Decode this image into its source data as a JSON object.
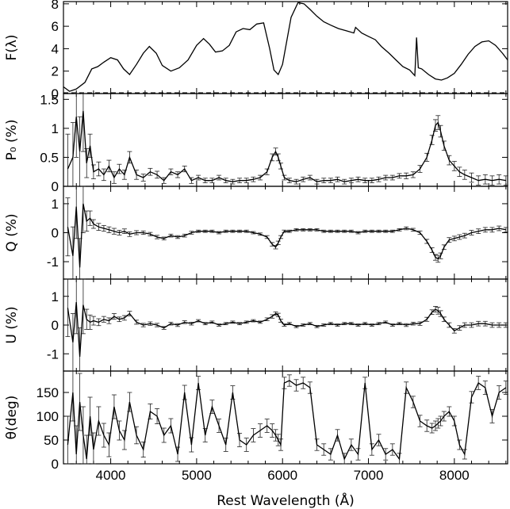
{
  "chart_data": [
    {
      "type": "line",
      "panel": "flux",
      "ylabel": "F(λ)",
      "ylim": [
        0,
        8.2
      ],
      "yticks": [
        0,
        2,
        4,
        6,
        8
      ],
      "xlim": [
        3450,
        8620
      ],
      "x": [
        3450,
        3520,
        3600,
        3700,
        3780,
        3850,
        3920,
        4000,
        4080,
        4150,
        4220,
        4300,
        4380,
        4450,
        4530,
        4600,
        4700,
        4800,
        4900,
        5000,
        5080,
        5150,
        5220,
        5300,
        5380,
        5460,
        5540,
        5620,
        5700,
        5780,
        5850,
        5900,
        5950,
        6000,
        6050,
        6100,
        6180,
        6250,
        6320,
        6400,
        6480,
        6560,
        6650,
        6740,
        6830,
        6850,
        6920,
        7000,
        7080,
        7150,
        7240,
        7320,
        7400,
        7480,
        7540,
        7560,
        7580,
        7620,
        7700,
        7780,
        7850,
        7920,
        8000,
        8080,
        8160,
        8240,
        8320,
        8400,
        8480,
        8560,
        8620
      ],
      "y": [
        0.6,
        0.2,
        0.4,
        1.0,
        2.2,
        2.4,
        2.8,
        3.2,
        3.0,
        2.2,
        1.7,
        2.6,
        3.6,
        4.2,
        3.6,
        2.5,
        2.0,
        2.3,
        3.0,
        4.3,
        4.9,
        4.4,
        3.7,
        3.8,
        4.3,
        5.5,
        5.8,
        5.7,
        6.2,
        6.3,
        4.0,
        2.1,
        1.7,
        2.6,
        4.7,
        6.8,
        8.1,
        8.0,
        7.5,
        6.9,
        6.4,
        6.1,
        5.8,
        5.6,
        5.4,
        5.9,
        5.4,
        5.1,
        4.8,
        4.2,
        3.6,
        3.0,
        2.4,
        2.1,
        1.6,
        5.0,
        2.3,
        2.2,
        1.7,
        1.3,
        1.2,
        1.4,
        1.8,
        2.6,
        3.5,
        4.2,
        4.6,
        4.7,
        4.3,
        3.6,
        3.0
      ]
    },
    {
      "type": "line",
      "panel": "p0",
      "ylabel": "P₀ (%)",
      "ylim": [
        0,
        1.6
      ],
      "yticks": [
        0,
        0.5,
        1,
        1.5
      ],
      "x": [
        3500,
        3560,
        3600,
        3640,
        3680,
        3720,
        3760,
        3800,
        3860,
        3920,
        3980,
        4040,
        4100,
        4160,
        4220,
        4300,
        4380,
        4460,
        4540,
        4620,
        4700,
        4780,
        4860,
        4940,
        5020,
        5100,
        5180,
        5260,
        5340,
        5420,
        5500,
        5580,
        5660,
        5740,
        5820,
        5880,
        5920,
        5950,
        5980,
        6020,
        6080,
        6160,
        6240,
        6320,
        6400,
        6480,
        6560,
        6640,
        6720,
        6800,
        6880,
        6960,
        7040,
        7120,
        7200,
        7280,
        7360,
        7440,
        7520,
        7600,
        7680,
        7740,
        7780,
        7810,
        7840,
        7880,
        7940,
        8000,
        8060,
        8120,
        8200,
        8280,
        8360,
        8440,
        8520,
        8600
      ],
      "y": [
        0.3,
        0.5,
        1.2,
        0.6,
        1.3,
        0.4,
        0.7,
        0.25,
        0.3,
        0.2,
        0.35,
        0.15,
        0.3,
        0.2,
        0.5,
        0.2,
        0.15,
        0.25,
        0.2,
        0.1,
        0.25,
        0.2,
        0.3,
        0.1,
        0.15,
        0.1,
        0.1,
        0.15,
        0.1,
        0.08,
        0.1,
        0.1,
        0.12,
        0.15,
        0.25,
        0.5,
        0.6,
        0.5,
        0.35,
        0.15,
        0.1,
        0.08,
        0.12,
        0.15,
        0.08,
        0.1,
        0.1,
        0.12,
        0.08,
        0.1,
        0.12,
        0.1,
        0.1,
        0.12,
        0.15,
        0.15,
        0.18,
        0.18,
        0.2,
        0.3,
        0.5,
        0.8,
        1.05,
        1.1,
        0.95,
        0.7,
        0.45,
        0.35,
        0.25,
        0.2,
        0.15,
        0.1,
        0.12,
        0.1,
        0.12,
        0.1
      ],
      "yerr": [
        0.6,
        0.6,
        0.7,
        0.6,
        0.7,
        0.25,
        0.2,
        0.12,
        0.12,
        0.1,
        0.1,
        0.1,
        0.08,
        0.08,
        0.1,
        0.08,
        0.06,
        0.06,
        0.06,
        0.05,
        0.05,
        0.05,
        0.05,
        0.05,
        0.04,
        0.04,
        0.04,
        0.04,
        0.04,
        0.04,
        0.04,
        0.04,
        0.04,
        0.04,
        0.05,
        0.06,
        0.06,
        0.06,
        0.05,
        0.04,
        0.04,
        0.04,
        0.04,
        0.04,
        0.04,
        0.04,
        0.04,
        0.04,
        0.04,
        0.04,
        0.04,
        0.04,
        0.04,
        0.04,
        0.04,
        0.04,
        0.04,
        0.05,
        0.05,
        0.06,
        0.07,
        0.08,
        0.1,
        0.12,
        0.1,
        0.08,
        0.08,
        0.08,
        0.08,
        0.08,
        0.08,
        0.08,
        0.08,
        0.08,
        0.08,
        0.08
      ]
    },
    {
      "type": "line",
      "panel": "q",
      "ylabel": "Q (%)",
      "ylim": [
        -1.6,
        1.6
      ],
      "yticks": [
        -1,
        0,
        1
      ],
      "x": [
        3500,
        3560,
        3600,
        3640,
        3680,
        3720,
        3760,
        3800,
        3860,
        3920,
        3980,
        4040,
        4100,
        4160,
        4220,
        4300,
        4380,
        4460,
        4540,
        4620,
        4700,
        4780,
        4860,
        4940,
        5020,
        5100,
        5180,
        5260,
        5340,
        5420,
        5500,
        5580,
        5660,
        5740,
        5820,
        5880,
        5920,
        5950,
        5980,
        6020,
        6080,
        6160,
        6240,
        6320,
        6400,
        6480,
        6560,
        6640,
        6720,
        6800,
        6880,
        6960,
        7040,
        7120,
        7200,
        7280,
        7360,
        7440,
        7520,
        7600,
        7680,
        7740,
        7780,
        7810,
        7840,
        7880,
        7940,
        8000,
        8060,
        8120,
        8200,
        8280,
        8360,
        8440,
        8520,
        8600
      ],
      "y": [
        0.2,
        -0.8,
        0.9,
        -1.2,
        1.0,
        0.4,
        0.5,
        0.3,
        0.2,
        0.15,
        0.1,
        0.05,
        0.0,
        0.05,
        -0.05,
        0.0,
        0.0,
        -0.05,
        -0.15,
        -0.2,
        -0.1,
        -0.15,
        -0.1,
        0.0,
        0.05,
        0.05,
        0.05,
        0.0,
        0.05,
        0.05,
        0.05,
        0.05,
        0.0,
        -0.05,
        -0.15,
        -0.4,
        -0.5,
        -0.35,
        -0.15,
        0.05,
        0.05,
        0.1,
        0.1,
        0.1,
        0.1,
        0.05,
        0.05,
        0.05,
        0.05,
        0.05,
        0.0,
        0.05,
        0.05,
        0.05,
        0.05,
        0.05,
        0.1,
        0.15,
        0.1,
        0.0,
        -0.3,
        -0.6,
        -0.85,
        -0.9,
        -0.8,
        -0.5,
        -0.25,
        -0.2,
        -0.15,
        -0.1,
        0.0,
        0.05,
        0.1,
        0.1,
        0.15,
        0.1
      ],
      "yerr": [
        1.0,
        1.0,
        1.1,
        1.0,
        1.0,
        0.35,
        0.25,
        0.15,
        0.12,
        0.1,
        0.1,
        0.1,
        0.08,
        0.08,
        0.08,
        0.07,
        0.06,
        0.06,
        0.06,
        0.05,
        0.05,
        0.05,
        0.05,
        0.05,
        0.04,
        0.04,
        0.04,
        0.04,
        0.04,
        0.04,
        0.04,
        0.04,
        0.04,
        0.04,
        0.05,
        0.06,
        0.06,
        0.06,
        0.05,
        0.04,
        0.04,
        0.04,
        0.04,
        0.04,
        0.04,
        0.04,
        0.04,
        0.04,
        0.04,
        0.04,
        0.04,
        0.04,
        0.04,
        0.04,
        0.04,
        0.04,
        0.04,
        0.05,
        0.05,
        0.06,
        0.07,
        0.08,
        0.1,
        0.12,
        0.1,
        0.08,
        0.08,
        0.08,
        0.08,
        0.08,
        0.08,
        0.08,
        0.08,
        0.08,
        0.08,
        0.08
      ]
    },
    {
      "type": "line",
      "panel": "u",
      "ylabel": "U (%)",
      "ylim": [
        -1.6,
        1.6
      ],
      "yticks": [
        -1,
        0,
        1
      ],
      "x": [
        3500,
        3560,
        3600,
        3640,
        3680,
        3720,
        3760,
        3800,
        3860,
        3920,
        3980,
        4040,
        4100,
        4160,
        4220,
        4300,
        4380,
        4460,
        4540,
        4620,
        4700,
        4780,
        4860,
        4940,
        5020,
        5100,
        5180,
        5260,
        5340,
        5420,
        5500,
        5580,
        5660,
        5740,
        5820,
        5880,
        5920,
        5950,
        5980,
        6020,
        6080,
        6160,
        6240,
        6320,
        6400,
        6480,
        6560,
        6640,
        6720,
        6800,
        6880,
        6960,
        7040,
        7120,
        7200,
        7280,
        7360,
        7440,
        7520,
        7600,
        7680,
        7740,
        7780,
        7810,
        7840,
        7880,
        7940,
        8000,
        8060,
        8120,
        8200,
        8280,
        8360,
        8440,
        8520,
        8600
      ],
      "y": [
        0.6,
        -0.6,
        0.8,
        -1.1,
        0.7,
        0.2,
        0.1,
        0.15,
        0.1,
        0.2,
        0.15,
        0.3,
        0.2,
        0.25,
        0.4,
        0.1,
        0.0,
        0.05,
        0.0,
        -0.1,
        0.05,
        0.0,
        0.1,
        0.05,
        0.15,
        0.05,
        0.1,
        0.0,
        0.05,
        0.1,
        0.05,
        0.1,
        0.15,
        0.1,
        0.2,
        0.3,
        0.4,
        0.35,
        0.15,
        0.0,
        0.05,
        -0.05,
        0.0,
        0.05,
        -0.05,
        0.0,
        0.05,
        0.0,
        0.05,
        0.05,
        0.0,
        0.05,
        0.0,
        0.05,
        0.1,
        0.0,
        0.05,
        0.0,
        0.05,
        0.05,
        0.2,
        0.45,
        0.55,
        0.5,
        0.4,
        0.2,
        0.0,
        -0.2,
        -0.1,
        0.0,
        0.0,
        0.05,
        0.05,
        0.0,
        0.0,
        0.0
      ],
      "yerr": [
        1.0,
        1.0,
        1.1,
        1.0,
        1.0,
        0.35,
        0.25,
        0.15,
        0.12,
        0.1,
        0.1,
        0.1,
        0.08,
        0.08,
        0.08,
        0.07,
        0.06,
        0.06,
        0.06,
        0.05,
        0.05,
        0.05,
        0.05,
        0.05,
        0.04,
        0.04,
        0.04,
        0.04,
        0.04,
        0.04,
        0.04,
        0.04,
        0.04,
        0.04,
        0.05,
        0.06,
        0.06,
        0.06,
        0.05,
        0.04,
        0.04,
        0.04,
        0.04,
        0.04,
        0.04,
        0.04,
        0.04,
        0.04,
        0.04,
        0.04,
        0.04,
        0.04,
        0.04,
        0.04,
        0.04,
        0.04,
        0.04,
        0.05,
        0.05,
        0.06,
        0.07,
        0.08,
        0.1,
        0.12,
        0.1,
        0.08,
        0.08,
        0.08,
        0.08,
        0.08,
        0.08,
        0.08,
        0.08,
        0.08,
        0.08,
        0.08
      ]
    },
    {
      "type": "line",
      "panel": "theta",
      "ylabel": "θ(deg)",
      "xlabel": "Rest Wavelength (Å)",
      "ylim": [
        0,
        195
      ],
      "yticks": [
        0,
        50,
        100,
        150
      ],
      "xticks": [
        4000,
        5000,
        6000,
        7000,
        8000
      ],
      "x": [
        3500,
        3560,
        3600,
        3640,
        3680,
        3720,
        3760,
        3800,
        3860,
        3920,
        3980,
        4040,
        4100,
        4160,
        4220,
        4300,
        4380,
        4460,
        4540,
        4620,
        4700,
        4780,
        4860,
        4940,
        5020,
        5100,
        5180,
        5260,
        5340,
        5420,
        5500,
        5580,
        5660,
        5740,
        5820,
        5880,
        5920,
        5950,
        5980,
        6020,
        6080,
        6160,
        6240,
        6320,
        6400,
        6480,
        6560,
        6640,
        6720,
        6800,
        6880,
        6960,
        7040,
        7120,
        7200,
        7280,
        7360,
        7440,
        7520,
        7600,
        7680,
        7740,
        7780,
        7810,
        7840,
        7880,
        7940,
        8000,
        8060,
        8120,
        8200,
        8280,
        8360,
        8440,
        8520,
        8600
      ],
      "y": [
        40,
        150,
        20,
        130,
        60,
        10,
        100,
        30,
        90,
        60,
        40,
        120,
        70,
        50,
        130,
        60,
        30,
        110,
        100,
        60,
        80,
        20,
        150,
        40,
        170,
        60,
        120,
        80,
        40,
        150,
        50,
        40,
        60,
        70,
        80,
        70,
        60,
        50,
        40,
        170,
        175,
        165,
        170,
        160,
        40,
        30,
        20,
        60,
        10,
        40,
        20,
        170,
        30,
        50,
        20,
        30,
        10,
        160,
        130,
        90,
        80,
        75,
        80,
        85,
        90,
        100,
        110,
        90,
        40,
        20,
        140,
        170,
        160,
        100,
        150,
        160
      ],
      "yerr": [
        60,
        60,
        60,
        60,
        60,
        50,
        40,
        35,
        30,
        25,
        25,
        25,
        20,
        20,
        20,
        18,
        16,
        16,
        16,
        15,
        15,
        15,
        15,
        15,
        14,
        14,
        14,
        14,
        14,
        14,
        14,
        14,
        14,
        14,
        14,
        14,
        12,
        12,
        12,
        12,
        12,
        12,
        12,
        12,
        12,
        12,
        12,
        12,
        12,
        12,
        12,
        12,
        12,
        12,
        12,
        12,
        12,
        12,
        12,
        12,
        12,
        10,
        10,
        10,
        10,
        10,
        10,
        10,
        10,
        10,
        12,
        14,
        14,
        14,
        14,
        14
      ]
    }
  ]
}
